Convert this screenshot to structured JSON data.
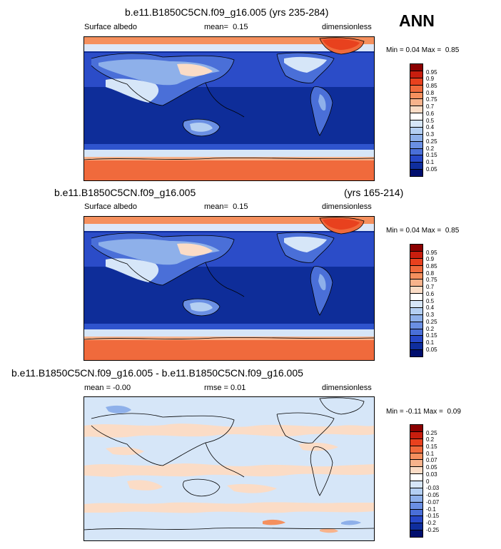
{
  "header": {
    "season": "ANN"
  },
  "panels": [
    {
      "id": "top",
      "case_title": "b.e11.B1850C5CN.f09_g16.005 (yrs 235-284)",
      "years": "",
      "left_label": "Surface albedo",
      "center_label": "mean=",
      "center_value": "0.15",
      "right_label": "dimensionless",
      "min_label": "Min =",
      "min_value": "0.04",
      "max_label": "Max =",
      "max_value": "0.85",
      "levels": [
        "0.95",
        "0.9",
        "0.85",
        "0.8",
        "0.75",
        "0.7",
        "0.6",
        "0.5",
        "0.4",
        "0.3",
        "0.25",
        "0.2",
        "0.15",
        "0.1",
        "0.05"
      ],
      "colors": [
        "#8B0000",
        "#C81E0E",
        "#E8411E",
        "#F06A3C",
        "#F5905E",
        "#F8B38C",
        "#FBDCC6",
        "#FFFFFF",
        "#D6E6F8",
        "#B4CFF2",
        "#8EB0EA",
        "#6A8FE3",
        "#4A6FD8",
        "#2748C8",
        "#0F2E9E",
        "#000E6E"
      ]
    },
    {
      "id": "middle",
      "case_title": "b.e11.B1850C5CN.f09_g16.005",
      "years": "(yrs 165-214)",
      "left_label": "Surface albedo",
      "center_label": "mean=",
      "center_value": "0.15",
      "right_label": "dimensionless",
      "min_label": "Min =",
      "min_value": "0.04",
      "max_label": "Max =",
      "max_value": "0.85",
      "levels": [
        "0.95",
        "0.9",
        "0.85",
        "0.8",
        "0.75",
        "0.7",
        "0.6",
        "0.5",
        "0.4",
        "0.3",
        "0.25",
        "0.2",
        "0.15",
        "0.1",
        "0.05"
      ],
      "colors": [
        "#8B0000",
        "#C81E0E",
        "#E8411E",
        "#F06A3C",
        "#F5905E",
        "#F8B38C",
        "#FBDCC6",
        "#FFFFFF",
        "#D6E6F8",
        "#B4CFF2",
        "#8EB0EA",
        "#6A8FE3",
        "#4A6FD8",
        "#2748C8",
        "#0F2E9E",
        "#000E6E"
      ]
    },
    {
      "id": "difference",
      "case_title": "b.e11.B1850C5CN.f09_g16.005 - b.e11.B1850C5CN.f09_g16.005",
      "years": "",
      "left_label": "mean =",
      "left_value": "-0.00",
      "center_label": "rmse =",
      "center_value": "0.01",
      "right_label": "dimensionless",
      "min_label": "Min =",
      "min_value": "-0.11",
      "max_label": "Max =",
      "max_value": "0.09",
      "levels": [
        "0.25",
        "0.2",
        "0.15",
        "0.1",
        "0.07",
        "0.05",
        "0.03",
        "0",
        "-0.03",
        "-0.05",
        "-0.07",
        "-0.1",
        "-0.15",
        "-0.2",
        "-0.25"
      ],
      "colors": [
        "#8B0000",
        "#C81E0E",
        "#E8411E",
        "#F06A3C",
        "#F5905E",
        "#F8B38C",
        "#FBDCC6",
        "#FFFFFF",
        "#D6E6F8",
        "#B4CFF2",
        "#8EB0EA",
        "#6A8FE3",
        "#4A6FD8",
        "#2748C8",
        "#0F2E9E",
        "#000E6E"
      ]
    }
  ]
}
